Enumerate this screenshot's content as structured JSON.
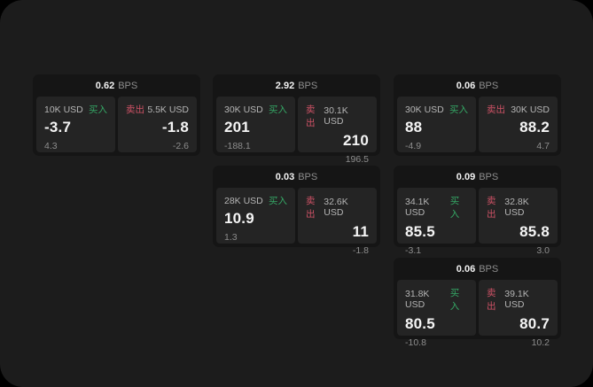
{
  "labels": {
    "bps_unit": "BPS",
    "buy": "买入",
    "sell": "卖出"
  },
  "colors": {
    "bg": "#1c1c1c",
    "card": "#151515",
    "panel": "#242424",
    "buy": "#35a865",
    "sell": "#cf5266"
  },
  "cards": [
    {
      "bps": "0.62",
      "buy": {
        "amount": "10K USD",
        "price": "-3.7",
        "delta": "4.3"
      },
      "sell": {
        "amount": "5.5K USD",
        "price": "-1.8",
        "delta": "-2.6"
      }
    },
    {
      "bps": "2.92",
      "buy": {
        "amount": "30K USD",
        "price": "201",
        "delta": "-188.1"
      },
      "sell": {
        "amount": "30.1K USD",
        "price": "210",
        "delta": "196.5"
      }
    },
    {
      "bps": "0.06",
      "buy": {
        "amount": "30K USD",
        "price": "88",
        "delta": "-4.9"
      },
      "sell": {
        "amount": "30K USD",
        "price": "88.2",
        "delta": "4.7"
      }
    },
    {
      "bps": "0.03",
      "buy": {
        "amount": "28K USD",
        "price": "10.9",
        "delta": "1.3"
      },
      "sell": {
        "amount": "32.6K USD",
        "price": "11",
        "delta": "-1.8"
      }
    },
    {
      "bps": "0.09",
      "buy": {
        "amount": "34.1K USD",
        "price": "85.5",
        "delta": "-3.1"
      },
      "sell": {
        "amount": "32.8K USD",
        "price": "85.8",
        "delta": "3.0"
      }
    },
    {
      "bps": "0.06",
      "buy": {
        "amount": "31.8K USD",
        "price": "80.5",
        "delta": "-10.8"
      },
      "sell": {
        "amount": "39.1K USD",
        "price": "80.7",
        "delta": "10.2"
      }
    }
  ]
}
